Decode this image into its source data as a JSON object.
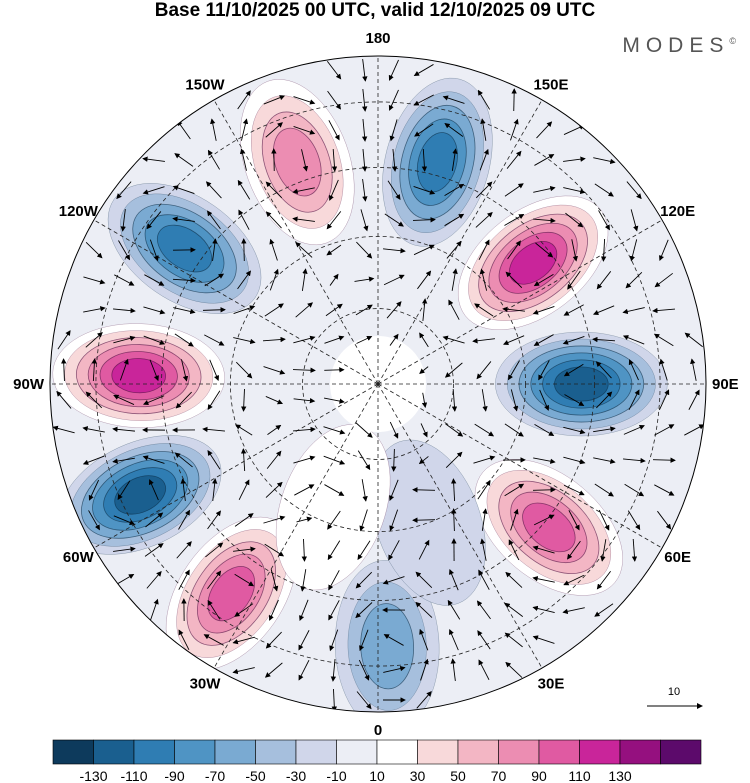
{
  "title": "Base 11/10/2025 00 UTC, valid 12/10/2025 09 UTC",
  "brand": "MODES",
  "brand_mark": "©",
  "chart_data": {
    "type": "heatmap",
    "projection": "north-polar-stereographic",
    "longitude_labels": [
      "180",
      "150E",
      "120E",
      "90E",
      "60E",
      "30E",
      "0",
      "30W",
      "60W",
      "90W",
      "120W",
      "150W"
    ],
    "colorbar": {
      "tick_labels": [
        "-130",
        "-110",
        "-90",
        "-70",
        "-50",
        "-30",
        "-10",
        "10",
        "30",
        "50",
        "70",
        "90",
        "110",
        "130"
      ],
      "colors": [
        "#0d3a5c",
        "#1a5f8f",
        "#2f7db3",
        "#4f94c4",
        "#7aaad2",
        "#a6bfdd",
        "#d0d6ea",
        "#eceef5",
        "#ffffff",
        "#f8d9da",
        "#f3b6c4",
        "#ec8db2",
        "#e05aa2",
        "#c9259a",
        "#95107f",
        "#5c0a6b"
      ]
    },
    "reference_vector": "10",
    "anomalies": [
      {
        "lon": 90,
        "colat": 0.62,
        "value": -110
      },
      {
        "lon": 50,
        "colat": 0.68,
        "value": 95
      },
      {
        "lon": 128,
        "colat": 0.6,
        "value": 120
      },
      {
        "lon": 165,
        "colat": 0.7,
        "value": -95
      },
      {
        "lon": -160,
        "colat": 0.72,
        "value": 80
      },
      {
        "lon": -125,
        "colat": 0.72,
        "value": -100
      },
      {
        "lon": -92,
        "colat": 0.73,
        "value": 125
      },
      {
        "lon": -65,
        "colat": 0.8,
        "value": -120
      },
      {
        "lon": -35,
        "colat": 0.78,
        "value": 90
      },
      {
        "lon": 2,
        "colat": 0.8,
        "value": -50
      },
      {
        "lon": 20,
        "colat": 0.45,
        "value": -25
      },
      {
        "lon": -20,
        "colat": 0.4,
        "value": 20
      }
    ]
  }
}
